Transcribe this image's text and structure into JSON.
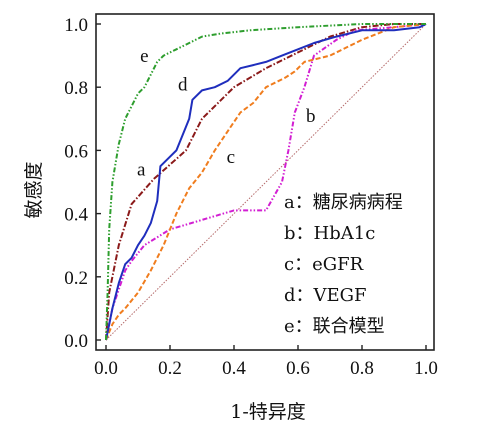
{
  "chart_data": {
    "type": "line",
    "xlabel": "1-特异度",
    "ylabel": "敏感度",
    "xlim": [
      0,
      1
    ],
    "ylim": [
      0,
      1
    ],
    "xticks": [
      "0.0",
      "0.2",
      "0.4",
      "0.6",
      "0.8",
      "1.0"
    ],
    "yticks": [
      "0.0",
      "0.2",
      "0.4",
      "0.6",
      "0.8",
      "1.0"
    ],
    "grid": false,
    "legend_position": "bottom-right",
    "legend": [
      "a：糖尿病病程",
      "b：HbA1c",
      "c：eGFR",
      "d：VEGF",
      "e：联合模型"
    ],
    "series": [
      {
        "name": "a",
        "color": "#8b1a1a",
        "dash": "dash-dot",
        "points": [
          [
            0,
            0
          ],
          [
            0.01,
            0.15
          ],
          [
            0.02,
            0.2
          ],
          [
            0.04,
            0.3
          ],
          [
            0.08,
            0.43
          ],
          [
            0.15,
            0.51
          ],
          [
            0.25,
            0.6
          ],
          [
            0.3,
            0.7
          ],
          [
            0.4,
            0.8
          ],
          [
            0.5,
            0.86
          ],
          [
            0.6,
            0.91
          ],
          [
            0.7,
            0.96
          ],
          [
            0.8,
            0.99
          ],
          [
            0.9,
            1.0
          ],
          [
            1.0,
            1.0
          ]
        ]
      },
      {
        "name": "b",
        "color": "#d21ed2",
        "dash": "dash-dot-dot",
        "points": [
          [
            0,
            0
          ],
          [
            0.01,
            0.05
          ],
          [
            0.02,
            0.1
          ],
          [
            0.04,
            0.16
          ],
          [
            0.06,
            0.22
          ],
          [
            0.08,
            0.25
          ],
          [
            0.12,
            0.3
          ],
          [
            0.2,
            0.35
          ],
          [
            0.3,
            0.38
          ],
          [
            0.4,
            0.41
          ],
          [
            0.5,
            0.41
          ],
          [
            0.55,
            0.5
          ],
          [
            0.57,
            0.6
          ],
          [
            0.59,
            0.72
          ],
          [
            0.62,
            0.8
          ],
          [
            0.65,
            0.9
          ],
          [
            0.72,
            0.95
          ],
          [
            0.78,
            0.98
          ],
          [
            0.9,
            0.99
          ],
          [
            1.0,
            1.0
          ]
        ]
      },
      {
        "name": "c",
        "color": "#f07d1e",
        "dash": "dashed",
        "points": [
          [
            0,
            0
          ],
          [
            0.02,
            0.05
          ],
          [
            0.04,
            0.08
          ],
          [
            0.06,
            0.1
          ],
          [
            0.1,
            0.15
          ],
          [
            0.14,
            0.22
          ],
          [
            0.18,
            0.3
          ],
          [
            0.22,
            0.4
          ],
          [
            0.26,
            0.48
          ],
          [
            0.3,
            0.53
          ],
          [
            0.34,
            0.6
          ],
          [
            0.38,
            0.66
          ],
          [
            0.42,
            0.72
          ],
          [
            0.46,
            0.75
          ],
          [
            0.5,
            0.8
          ],
          [
            0.56,
            0.83
          ],
          [
            0.59,
            0.85
          ],
          [
            0.62,
            0.88
          ],
          [
            0.7,
            0.9
          ],
          [
            0.8,
            0.95
          ],
          [
            0.9,
            0.99
          ],
          [
            1.0,
            1.0
          ]
        ]
      },
      {
        "name": "d",
        "color": "#1f2ebd",
        "dash": "solid",
        "points": [
          [
            0,
            0
          ],
          [
            0.02,
            0.1
          ],
          [
            0.04,
            0.18
          ],
          [
            0.06,
            0.24
          ],
          [
            0.08,
            0.26
          ],
          [
            0.1,
            0.3
          ],
          [
            0.12,
            0.33
          ],
          [
            0.14,
            0.37
          ],
          [
            0.16,
            0.44
          ],
          [
            0.17,
            0.55
          ],
          [
            0.2,
            0.58
          ],
          [
            0.22,
            0.6
          ],
          [
            0.26,
            0.7
          ],
          [
            0.27,
            0.76
          ],
          [
            0.3,
            0.79
          ],
          [
            0.34,
            0.8
          ],
          [
            0.38,
            0.82
          ],
          [
            0.42,
            0.86
          ],
          [
            0.46,
            0.87
          ],
          [
            0.5,
            0.88
          ],
          [
            0.55,
            0.9
          ],
          [
            0.6,
            0.92
          ],
          [
            0.65,
            0.94
          ],
          [
            0.72,
            0.96
          ],
          [
            0.8,
            0.98
          ],
          [
            0.9,
            0.98
          ],
          [
            0.98,
            0.99
          ],
          [
            1.0,
            1.0
          ]
        ]
      },
      {
        "name": "e",
        "color": "#2e9e2e",
        "dash": "dash-dot-dot",
        "points": [
          [
            0,
            0
          ],
          [
            0.005,
            0.15
          ],
          [
            0.01,
            0.35
          ],
          [
            0.02,
            0.5
          ],
          [
            0.04,
            0.62
          ],
          [
            0.06,
            0.7
          ],
          [
            0.08,
            0.74
          ],
          [
            0.1,
            0.78
          ],
          [
            0.12,
            0.8
          ],
          [
            0.14,
            0.84
          ],
          [
            0.16,
            0.88
          ],
          [
            0.18,
            0.9
          ],
          [
            0.22,
            0.92
          ],
          [
            0.26,
            0.94
          ],
          [
            0.3,
            0.96
          ],
          [
            0.36,
            0.97
          ],
          [
            0.45,
            0.98
          ],
          [
            0.6,
            0.99
          ],
          [
            0.8,
            1.0
          ],
          [
            1.0,
            1.0
          ]
        ]
      }
    ],
    "reference_line": {
      "color": "#b56b6b",
      "from": [
        0,
        0
      ],
      "to": [
        1,
        1
      ]
    },
    "curve_labels": [
      {
        "text": "e",
        "x": 0.12,
        "y": 0.88
      },
      {
        "text": "d",
        "x": 0.24,
        "y": 0.79
      },
      {
        "text": "a",
        "x": 0.11,
        "y": 0.52
      },
      {
        "text": "c",
        "x": 0.39,
        "y": 0.56
      },
      {
        "text": "b",
        "x": 0.64,
        "y": 0.69
      }
    ]
  }
}
